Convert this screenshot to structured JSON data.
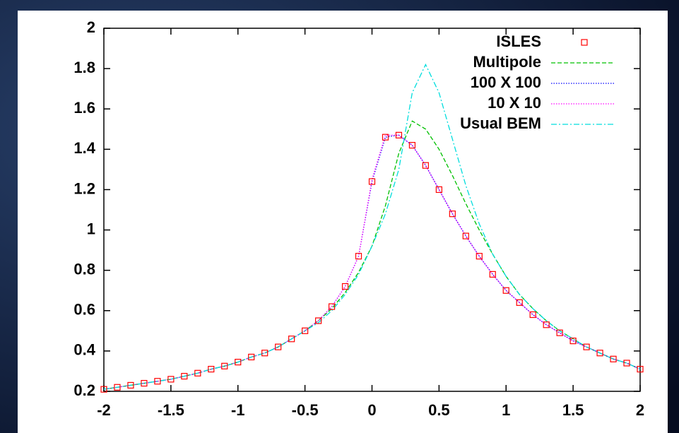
{
  "chart_data": {
    "type": "line",
    "x": [
      -2,
      -1.9,
      -1.8,
      -1.7,
      -1.6,
      -1.5,
      -1.4,
      -1.3,
      -1.2,
      -1.1,
      -1,
      -0.9,
      -0.8,
      -0.7,
      -0.6,
      -0.5,
      -0.4,
      -0.3,
      -0.2,
      -0.1,
      0,
      0.1,
      0.2,
      0.3,
      0.4,
      0.5,
      0.6,
      0.7,
      0.8,
      0.9,
      1,
      1.1,
      1.2,
      1.3,
      1.4,
      1.5,
      1.6,
      1.7,
      1.8,
      1.9,
      2
    ],
    "series": [
      {
        "name": "ISLES",
        "color": "#ff0000",
        "style": "squares",
        "values": [
          0.21,
          0.22,
          0.23,
          0.24,
          0.25,
          0.26,
          0.275,
          0.29,
          0.31,
          0.325,
          0.345,
          0.37,
          0.39,
          0.42,
          0.46,
          0.5,
          0.55,
          0.62,
          0.72,
          0.87,
          1.24,
          1.46,
          1.47,
          1.42,
          1.32,
          1.2,
          1.08,
          0.97,
          0.87,
          0.78,
          0.7,
          0.64,
          0.58,
          0.53,
          0.49,
          0.45,
          0.42,
          0.39,
          0.36,
          0.34,
          0.31
        ]
      },
      {
        "name": "Multipole",
        "color": "#00c000",
        "style": "dashed",
        "values": [
          0.21,
          0.22,
          0.23,
          0.24,
          0.25,
          0.26,
          0.275,
          0.29,
          0.31,
          0.325,
          0.345,
          0.37,
          0.39,
          0.42,
          0.46,
          0.5,
          0.55,
          0.61,
          0.69,
          0.79,
          0.92,
          1.12,
          1.38,
          1.54,
          1.5,
          1.4,
          1.27,
          1.13,
          1.0,
          0.88,
          0.77,
          0.68,
          0.61,
          0.55,
          0.5,
          0.46,
          0.42,
          0.39,
          0.36,
          0.34,
          0.31
        ]
      },
      {
        "name": "100 X 100",
        "color": "#0000ff",
        "style": "dotted",
        "values": [
          0.21,
          0.22,
          0.23,
          0.24,
          0.25,
          0.26,
          0.275,
          0.29,
          0.31,
          0.325,
          0.345,
          0.37,
          0.39,
          0.42,
          0.46,
          0.5,
          0.55,
          0.62,
          0.72,
          0.87,
          1.24,
          1.46,
          1.47,
          1.42,
          1.32,
          1.2,
          1.08,
          0.97,
          0.87,
          0.78,
          0.7,
          0.64,
          0.58,
          0.53,
          0.49,
          0.45,
          0.42,
          0.39,
          0.36,
          0.34,
          0.31
        ]
      },
      {
        "name": "10 X 10",
        "color": "#ff00ff",
        "style": "dotted",
        "values": [
          0.21,
          0.22,
          0.23,
          0.24,
          0.25,
          0.26,
          0.275,
          0.29,
          0.31,
          0.325,
          0.345,
          0.37,
          0.39,
          0.42,
          0.46,
          0.5,
          0.55,
          0.62,
          0.72,
          0.87,
          1.25,
          1.47,
          1.47,
          1.42,
          1.32,
          1.2,
          1.08,
          0.97,
          0.87,
          0.78,
          0.7,
          0.64,
          0.58,
          0.53,
          0.49,
          0.45,
          0.42,
          0.39,
          0.36,
          0.34,
          0.31
        ]
      },
      {
        "name": "Usual BEM",
        "color": "#00dddd",
        "style": "dashdot",
        "values": [
          0.21,
          0.22,
          0.23,
          0.24,
          0.25,
          0.26,
          0.275,
          0.29,
          0.31,
          0.325,
          0.345,
          0.37,
          0.39,
          0.42,
          0.46,
          0.5,
          0.54,
          0.6,
          0.68,
          0.78,
          0.92,
          1.08,
          1.3,
          1.68,
          1.82,
          1.68,
          1.45,
          1.22,
          1.03,
          0.88,
          0.77,
          0.68,
          0.61,
          0.55,
          0.5,
          0.46,
          0.42,
          0.39,
          0.36,
          0.34,
          0.31
        ]
      }
    ],
    "xlim": [
      -2,
      2
    ],
    "ylim": [
      0.2,
      2
    ],
    "xticks": [
      -2,
      -1.5,
      -1,
      -0.5,
      0,
      0.5,
      1,
      1.5,
      2
    ],
    "yticks": [
      0.2,
      0.4,
      0.6,
      0.8,
      1,
      1.2,
      1.4,
      1.6,
      1.8,
      2
    ],
    "legend": "top-right"
  }
}
